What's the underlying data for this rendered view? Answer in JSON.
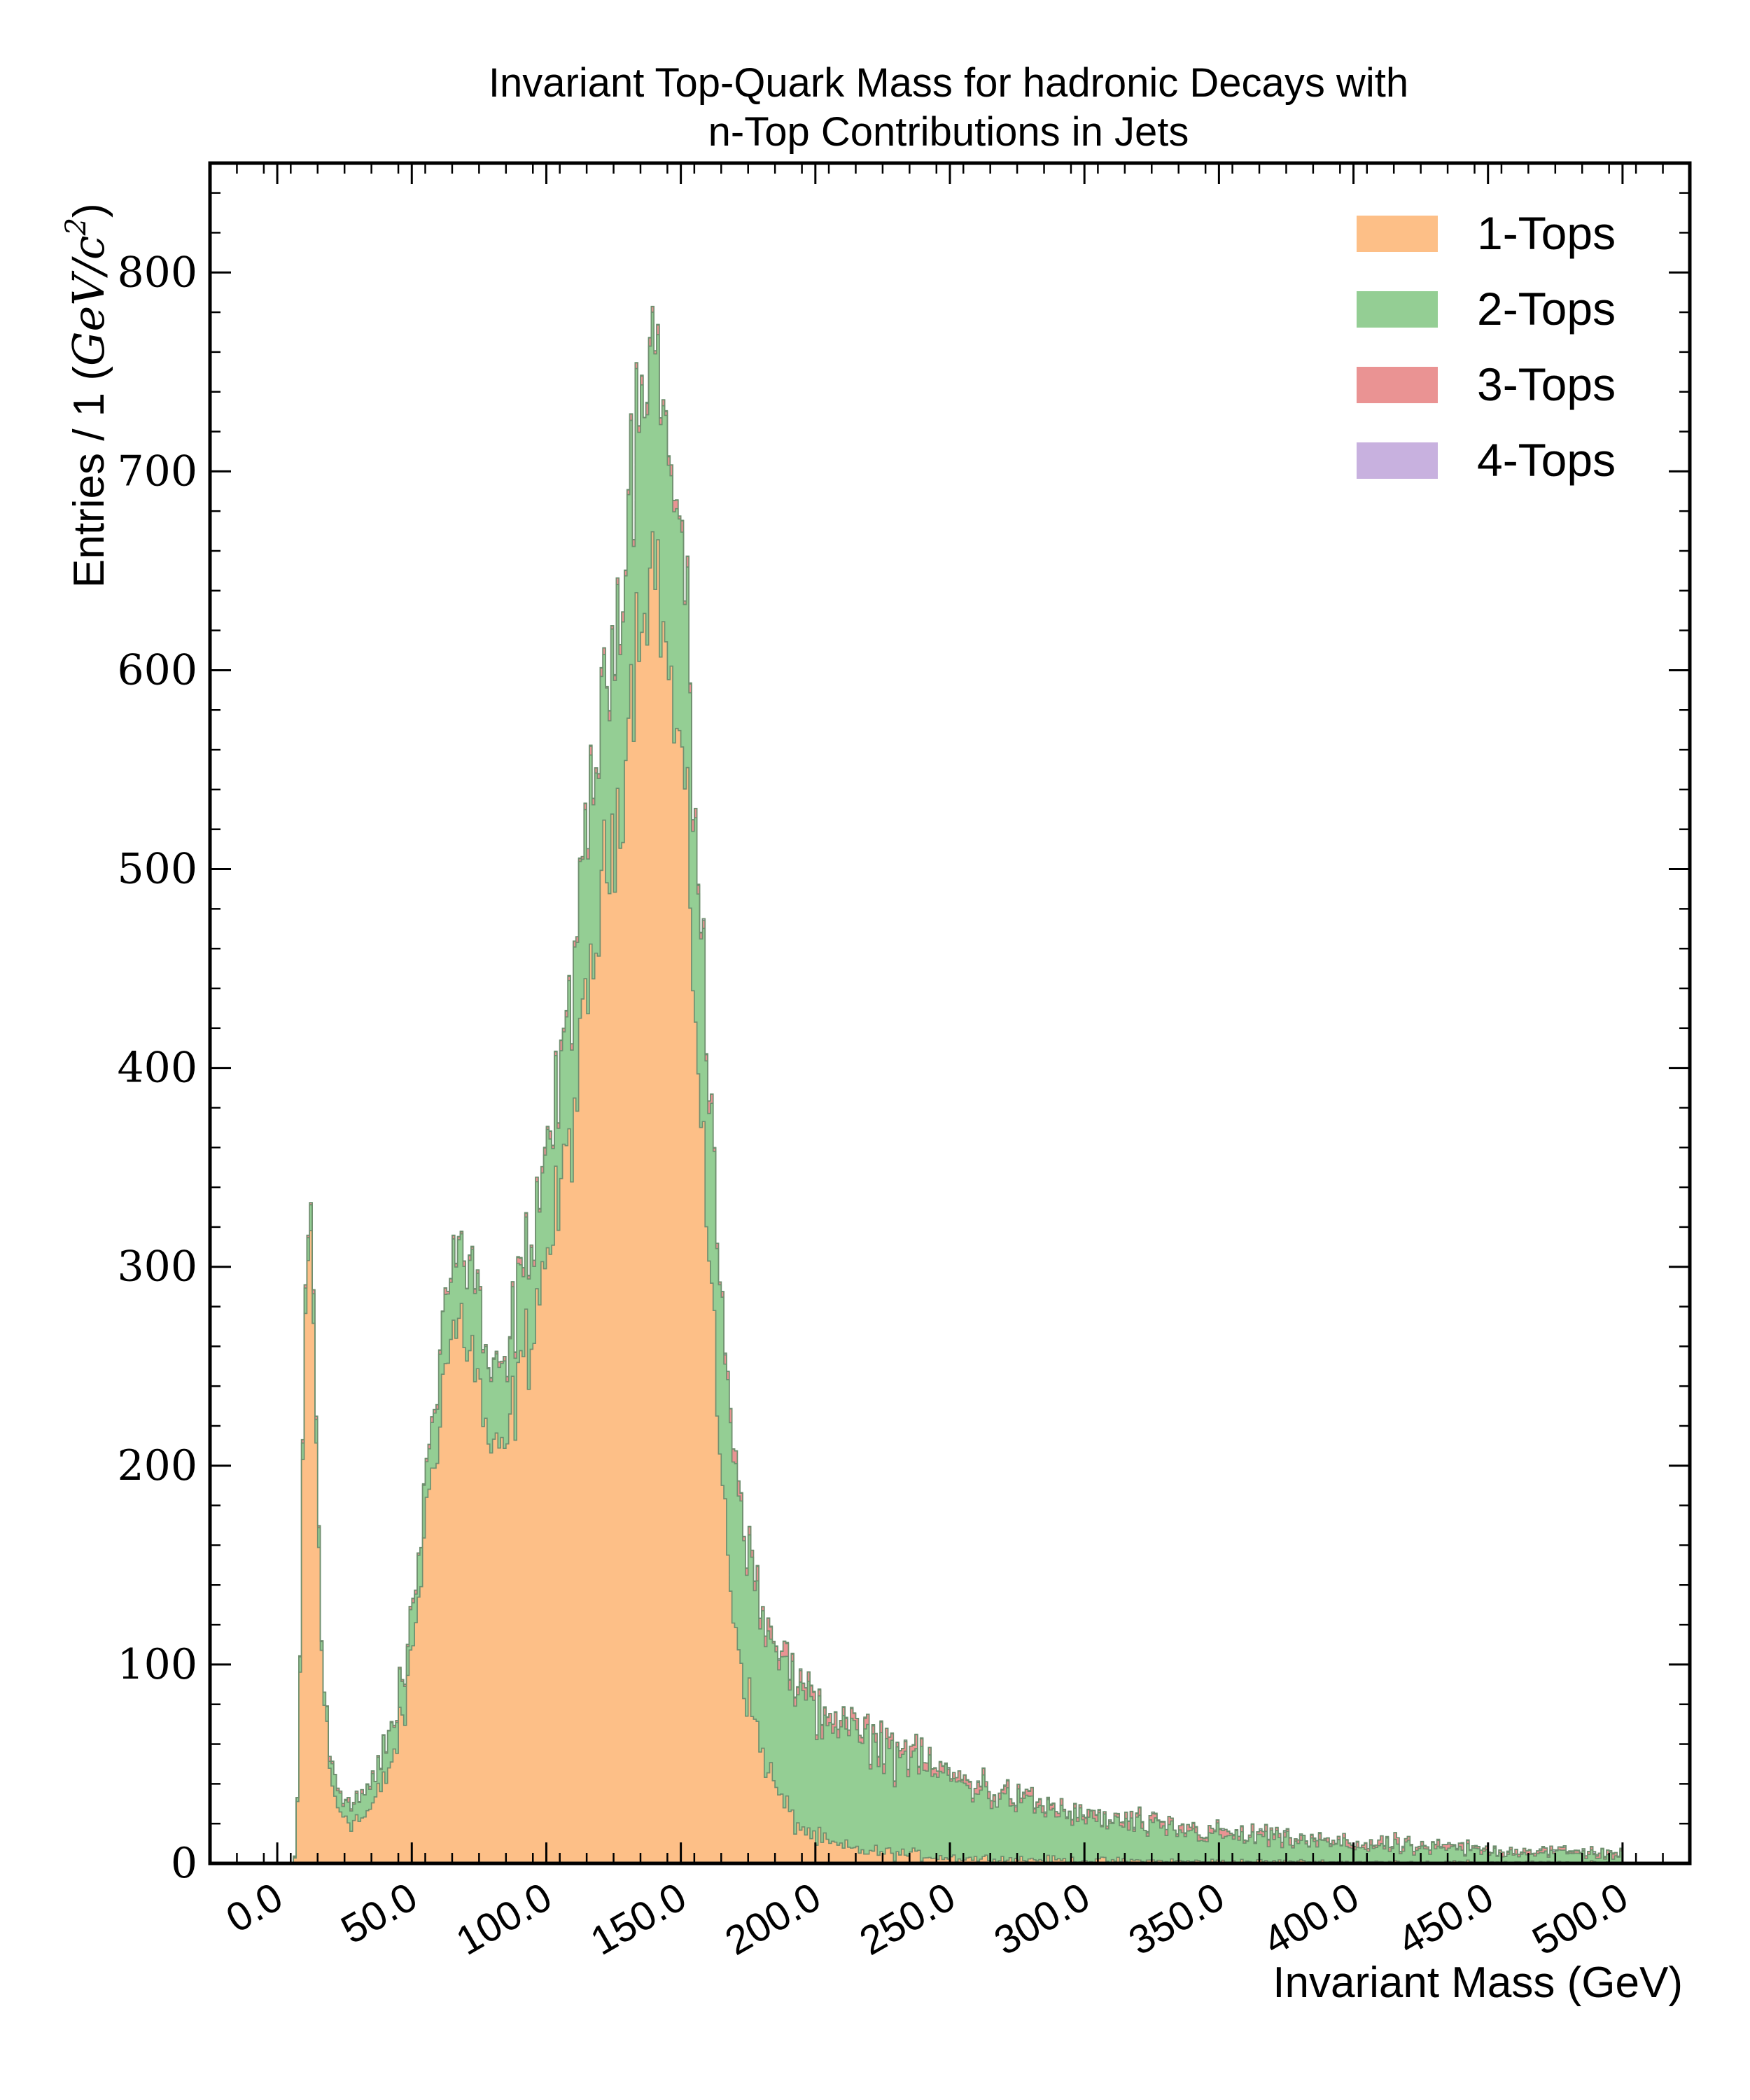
{
  "chart_data": {
    "type": "histogram-stacked",
    "title_line1": "Invariant Top-Quark Mass for hadronic Decays with",
    "title_line2": "n-Top Contributions in Jets",
    "xlabel": "Invariant Mass (GeV)",
    "ylabel_text": "Entries / 1 (",
    "ylabel_unit": "GeV/c",
    "ylabel_sup": "2",
    "ylabel_close": ")",
    "xlim": [
      -25,
      525
    ],
    "ylim": [
      0,
      855
    ],
    "x_ticks": [
      0,
      50,
      100,
      150,
      200,
      250,
      300,
      350,
      400,
      450,
      500
    ],
    "x_tick_labels": [
      "0.0",
      "50.0",
      "100.0",
      "150.0",
      "200.0",
      "250.0",
      "300.0",
      "350.0",
      "400.0",
      "450.0",
      "500.0"
    ],
    "y_ticks": [
      0,
      100,
      200,
      300,
      400,
      500,
      600,
      700,
      800
    ],
    "y_tick_labels": [
      "0",
      "100",
      "200",
      "300",
      "400",
      "500",
      "600",
      "700",
      "800"
    ],
    "grid": false,
    "legend_position": "top-right",
    "bin_width": 1,
    "x_range": [
      0,
      500
    ],
    "series": [
      {
        "name": "1-Tops",
        "color": "#fdbf87",
        "points": [
          [
            0,
            0
          ],
          [
            2,
            0
          ],
          [
            4,
            0
          ],
          [
            6,
            0
          ],
          [
            7,
            5
          ],
          [
            8,
            45
          ],
          [
            9,
            140
          ],
          [
            10,
            250
          ],
          [
            11,
            300
          ],
          [
            12,
            320
          ],
          [
            13,
            300
          ],
          [
            14,
            240
          ],
          [
            15,
            180
          ],
          [
            16,
            130
          ],
          [
            17,
            95
          ],
          [
            18,
            72
          ],
          [
            19,
            55
          ],
          [
            20,
            40
          ],
          [
            22,
            30
          ],
          [
            24,
            26
          ],
          [
            26,
            24
          ],
          [
            28,
            22
          ],
          [
            30,
            22
          ],
          [
            32,
            23
          ],
          [
            34,
            26
          ],
          [
            36,
            30
          ],
          [
            38,
            35
          ],
          [
            40,
            42
          ],
          [
            42,
            50
          ],
          [
            44,
            58
          ],
          [
            46,
            68
          ],
          [
            48,
            82
          ],
          [
            50,
            105
          ],
          [
            52,
            130
          ],
          [
            54,
            155
          ],
          [
            56,
            180
          ],
          [
            58,
            205
          ],
          [
            60,
            225
          ],
          [
            62,
            245
          ],
          [
            64,
            260
          ],
          [
            66,
            268
          ],
          [
            68,
            272
          ],
          [
            70,
            268
          ],
          [
            72,
            260
          ],
          [
            74,
            245
          ],
          [
            76,
            230
          ],
          [
            78,
            215
          ],
          [
            80,
            205
          ],
          [
            82,
            200
          ],
          [
            84,
            205
          ],
          [
            86,
            215
          ],
          [
            88,
            230
          ],
          [
            90,
            245
          ],
          [
            92,
            255
          ],
          [
            94,
            265
          ],
          [
            96,
            280
          ],
          [
            98,
            295
          ],
          [
            100,
            305
          ],
          [
            102,
            315
          ],
          [
            104,
            325
          ],
          [
            106,
            340
          ],
          [
            108,
            360
          ],
          [
            110,
            375
          ],
          [
            112,
            395
          ],
          [
            114,
            415
          ],
          [
            116,
            440
          ],
          [
            118,
            460
          ],
          [
            120,
            480
          ],
          [
            122,
            495
          ],
          [
            124,
            510
          ],
          [
            126,
            525
          ],
          [
            128,
            545
          ],
          [
            130,
            570
          ],
          [
            132,
            600
          ],
          [
            134,
            620
          ],
          [
            136,
            640
          ],
          [
            138,
            650
          ],
          [
            140,
            655
          ],
          [
            142,
            640
          ],
          [
            144,
            615
          ],
          [
            146,
            590
          ],
          [
            148,
            570
          ],
          [
            150,
            560
          ],
          [
            152,
            520
          ],
          [
            154,
            470
          ],
          [
            156,
            420
          ],
          [
            158,
            370
          ],
          [
            160,
            320
          ],
          [
            162,
            270
          ],
          [
            164,
            220
          ],
          [
            166,
            180
          ],
          [
            168,
            150
          ],
          [
            170,
            125
          ],
          [
            172,
            105
          ],
          [
            174,
            90
          ],
          [
            176,
            78
          ],
          [
            178,
            68
          ],
          [
            180,
            58
          ],
          [
            182,
            50
          ],
          [
            184,
            42
          ],
          [
            186,
            36
          ],
          [
            188,
            30
          ],
          [
            190,
            26
          ],
          [
            192,
            22
          ],
          [
            194,
            19
          ],
          [
            196,
            17
          ],
          [
            198,
            15
          ],
          [
            200,
            13
          ],
          [
            205,
            10
          ],
          [
            210,
            8
          ],
          [
            220,
            6
          ],
          [
            230,
            5
          ],
          [
            240,
            4
          ],
          [
            250,
            3
          ],
          [
            260,
            2.5
          ],
          [
            280,
            2
          ],
          [
            300,
            1.5
          ],
          [
            340,
            1
          ],
          [
            380,
            0.8
          ],
          [
            420,
            0.6
          ],
          [
            460,
            0.4
          ],
          [
            500,
            0.3
          ]
        ]
      },
      {
        "name": "2-Tops",
        "color": "#94ce94",
        "points": [
          [
            0,
            0
          ],
          [
            6,
            0
          ],
          [
            7,
            1
          ],
          [
            8,
            3
          ],
          [
            9,
            8
          ],
          [
            10,
            12
          ],
          [
            11,
            15
          ],
          [
            12,
            15
          ],
          [
            13,
            14
          ],
          [
            14,
            12
          ],
          [
            15,
            10
          ],
          [
            16,
            8
          ],
          [
            17,
            7
          ],
          [
            18,
            7
          ],
          [
            20,
            8
          ],
          [
            22,
            9
          ],
          [
            24,
            10
          ],
          [
            26,
            10
          ],
          [
            28,
            11
          ],
          [
            30,
            11
          ],
          [
            34,
            12
          ],
          [
            38,
            14
          ],
          [
            42,
            15
          ],
          [
            46,
            16
          ],
          [
            50,
            18
          ],
          [
            54,
            20
          ],
          [
            58,
            26
          ],
          [
            62,
            34
          ],
          [
            66,
            40
          ],
          [
            70,
            42
          ],
          [
            74,
            40
          ],
          [
            78,
            38
          ],
          [
            82,
            38
          ],
          [
            86,
            40
          ],
          [
            90,
            44
          ],
          [
            94,
            48
          ],
          [
            98,
            52
          ],
          [
            102,
            58
          ],
          [
            106,
            64
          ],
          [
            110,
            70
          ],
          [
            114,
            78
          ],
          [
            118,
            86
          ],
          [
            122,
            92
          ],
          [
            126,
            98
          ],
          [
            130,
            104
          ],
          [
            134,
            110
          ],
          [
            138,
            114
          ],
          [
            140,
            118
          ],
          [
            142,
            114
          ],
          [
            146,
            110
          ],
          [
            150,
            104
          ],
          [
            154,
            98
          ],
          [
            158,
            92
          ],
          [
            162,
            86
          ],
          [
            166,
            80
          ],
          [
            170,
            78
          ],
          [
            174,
            76
          ],
          [
            178,
            74
          ],
          [
            182,
            72
          ],
          [
            186,
            70
          ],
          [
            190,
            68
          ],
          [
            194,
            66
          ],
          [
            198,
            64
          ],
          [
            202,
            62
          ],
          [
            206,
            60
          ],
          [
            210,
            58
          ],
          [
            215,
            56
          ],
          [
            220,
            54
          ],
          [
            225,
            52
          ],
          [
            230,
            50
          ],
          [
            240,
            45
          ],
          [
            250,
            40
          ],
          [
            260,
            35
          ],
          [
            270,
            31
          ],
          [
            280,
            27
          ],
          [
            290,
            24
          ],
          [
            300,
            21
          ],
          [
            320,
            17
          ],
          [
            340,
            14
          ],
          [
            360,
            12
          ],
          [
            380,
            10
          ],
          [
            400,
            8
          ],
          [
            420,
            7
          ],
          [
            440,
            6
          ],
          [
            460,
            5
          ],
          [
            480,
            4.5
          ],
          [
            500,
            4
          ]
        ]
      },
      {
        "name": "3-Tops",
        "color": "#ea9393",
        "points": [
          [
            0,
            0
          ],
          [
            6,
            0
          ],
          [
            8,
            0.5
          ],
          [
            12,
            1
          ],
          [
            20,
            1
          ],
          [
            40,
            1
          ],
          [
            60,
            1.5
          ],
          [
            80,
            2
          ],
          [
            100,
            2.5
          ],
          [
            120,
            3
          ],
          [
            140,
            3.5
          ],
          [
            160,
            4
          ],
          [
            180,
            4.5
          ],
          [
            200,
            4.5
          ],
          [
            220,
            4
          ],
          [
            240,
            3.5
          ],
          [
            260,
            3
          ],
          [
            280,
            2.6
          ],
          [
            300,
            2.3
          ],
          [
            340,
            2
          ],
          [
            380,
            1.8
          ],
          [
            420,
            1.6
          ],
          [
            460,
            1.4
          ],
          [
            500,
            1.2
          ]
        ]
      },
      {
        "name": "4-Tops",
        "color": "#c8b1df",
        "points": [
          [
            0,
            0
          ],
          [
            100,
            0.1
          ],
          [
            200,
            0.2
          ],
          [
            300,
            0.2
          ],
          [
            400,
            0.2
          ],
          [
            500,
            0.2
          ]
        ]
      }
    ]
  }
}
